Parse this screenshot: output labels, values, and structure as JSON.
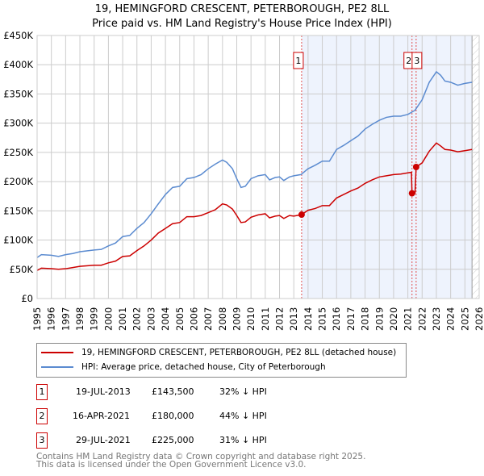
{
  "title": "19, HEMINGFORD CRESCENT, PETERBOROUGH, PE2 8LL",
  "subtitle": "Price paid vs. HM Land Registry's House Price Index (HPI)",
  "chart_data": {
    "type": "line",
    "title": "19, HEMINGFORD CRESCENT, PETERBOROUGH, PE2 8LL",
    "subtitle": "Price paid vs. HM Land Registry's House Price Index (HPI)",
    "xlim": [
      1995,
      2026
    ],
    "ylim": [
      0,
      450000
    ],
    "x_ticks": [
      "1995",
      "1996",
      "1997",
      "1998",
      "1999",
      "2000",
      "2001",
      "2002",
      "2003",
      "2004",
      "2005",
      "2006",
      "2007",
      "2008",
      "2009",
      "2010",
      "2011",
      "2012",
      "2013",
      "2014",
      "2015",
      "2016",
      "2017",
      "2018",
      "2019",
      "2020",
      "2021",
      "2022",
      "2023",
      "2024",
      "2025",
      "2026"
    ],
    "y_ticks": [
      {
        "v": 0,
        "label": "£0"
      },
      {
        "v": 50000,
        "label": "£50K"
      },
      {
        "v": 100000,
        "label": "£100K"
      },
      {
        "v": 150000,
        "label": "£150K"
      },
      {
        "v": 200000,
        "label": "£200K"
      },
      {
        "v": 250000,
        "label": "£250K"
      },
      {
        "v": 300000,
        "label": "£300K"
      },
      {
        "v": 350000,
        "label": "£350K"
      },
      {
        "v": 400000,
        "label": "£400K"
      },
      {
        "v": 450000,
        "label": "£450K"
      }
    ],
    "grid": true,
    "shaded_from": 2013.55,
    "hatched_from": 2025.5,
    "series": [
      {
        "name": "19, HEMINGFORD CRESCENT, PETERBOROUGH, PE2 8LL (detached house)",
        "color": "#cc0000",
        "x": [
          1995,
          1995.3,
          1996,
          1996.5,
          1997,
          1997.5,
          1998,
          1999,
          1999.5,
          2000,
          2000.5,
          2001,
          2001.5,
          2002,
          2002.5,
          2003,
          2003.5,
          2004,
          2004.5,
          2005,
          2005.5,
          2006,
          2006.5,
          2007,
          2007.5,
          2008,
          2008.3,
          2008.7,
          2009,
          2009.3,
          2009.6,
          2010,
          2010.5,
          2011,
          2011.3,
          2011.7,
          2012,
          2012.3,
          2012.7,
          2013,
          2013.55,
          2014,
          2014.5,
          2015,
          2015.5,
          2016,
          2016.5,
          2017,
          2017.5,
          2018,
          2018.5,
          2019,
          2019.5,
          2020,
          2020.5,
          2021,
          2021.25,
          2021.29,
          2021.5,
          2021.58,
          2022,
          2022.5,
          2023,
          2023.3,
          2023.6,
          2024,
          2024.5,
          2025,
          2025.5
        ],
        "y": [
          48000,
          52000,
          51000,
          50000,
          51000,
          53000,
          55000,
          57000,
          57000,
          61000,
          64000,
          72000,
          73000,
          82000,
          90000,
          100000,
          112000,
          120000,
          128000,
          130000,
          140000,
          140000,
          142000,
          147000,
          152000,
          162000,
          160000,
          153000,
          142000,
          130000,
          131000,
          139000,
          143000,
          145000,
          138000,
          141000,
          142000,
          137000,
          142000,
          141000,
          143500,
          151000,
          154000,
          159000,
          159000,
          172000,
          178000,
          184000,
          189000,
          197000,
          203000,
          208000,
          210000,
          212000,
          213000,
          215000,
          216000,
          180000,
          180000,
          225000,
          232000,
          252000,
          266000,
          261000,
          255000,
          254000,
          251000,
          253000,
          255000
        ]
      },
      {
        "name": "HPI: Average price, detached house, City of Peterborough",
        "color": "#5b8bd0",
        "x": [
          1995,
          1995.3,
          1996,
          1996.5,
          1997,
          1997.5,
          1998,
          1999,
          1999.5,
          2000,
          2000.5,
          2001,
          2001.5,
          2002,
          2002.5,
          2003,
          2003.5,
          2004,
          2004.5,
          2005,
          2005.5,
          2006,
          2006.5,
          2007,
          2007.5,
          2008,
          2008.3,
          2008.7,
          2009,
          2009.3,
          2009.6,
          2010,
          2010.5,
          2011,
          2011.3,
          2011.7,
          2012,
          2012.3,
          2012.7,
          2013,
          2013.5,
          2014,
          2014.5,
          2015,
          2015.5,
          2016,
          2016.5,
          2017,
          2017.5,
          2018,
          2018.5,
          2019,
          2019.5,
          2020,
          2020.5,
          2021,
          2021.5,
          2022,
          2022.5,
          2023,
          2023.3,
          2023.6,
          2024,
          2024.5,
          2025,
          2025.5
        ],
        "y": [
          70000,
          75000,
          74000,
          72000,
          75000,
          77000,
          80000,
          83000,
          84000,
          90000,
          95000,
          106000,
          108000,
          120000,
          130000,
          145000,
          162000,
          178000,
          190000,
          192000,
          205000,
          207000,
          212000,
          222000,
          230000,
          237000,
          233000,
          222000,
          205000,
          190000,
          192000,
          205000,
          210000,
          212000,
          203000,
          207000,
          208000,
          202000,
          208000,
          210000,
          212000,
          222000,
          228000,
          235000,
          235000,
          255000,
          262000,
          270000,
          278000,
          290000,
          298000,
          305000,
          310000,
          312000,
          312000,
          315000,
          322000,
          340000,
          370000,
          388000,
          382000,
          372000,
          370000,
          365000,
          368000,
          370000
        ]
      }
    ],
    "sales": [
      {
        "n": "1",
        "x": 2013.55,
        "y": 143500
      },
      {
        "n": "2",
        "x": 2021.29,
        "y": 180000
      },
      {
        "n": "3",
        "x": 2021.58,
        "y": 225000
      }
    ]
  },
  "legend": {
    "property": "19, HEMINGFORD CRESCENT, PETERBOROUGH, PE2 8LL (detached house)",
    "hpi": "HPI: Average price, detached house, City of Peterborough"
  },
  "sales_table": [
    {
      "n": "1",
      "date": "19-JUL-2013",
      "price": "£143,500",
      "hpi": "32% ↓ HPI"
    },
    {
      "n": "2",
      "date": "16-APR-2021",
      "price": "£180,000",
      "hpi": "44% ↓ HPI"
    },
    {
      "n": "3",
      "date": "29-JUL-2021",
      "price": "£225,000",
      "hpi": "31% ↓ HPI"
    }
  ],
  "footer": {
    "line1": "Contains HM Land Registry data © Crown copyright and database right 2025.",
    "line2": "This data is licensed under the Open Government Licence v3.0."
  }
}
